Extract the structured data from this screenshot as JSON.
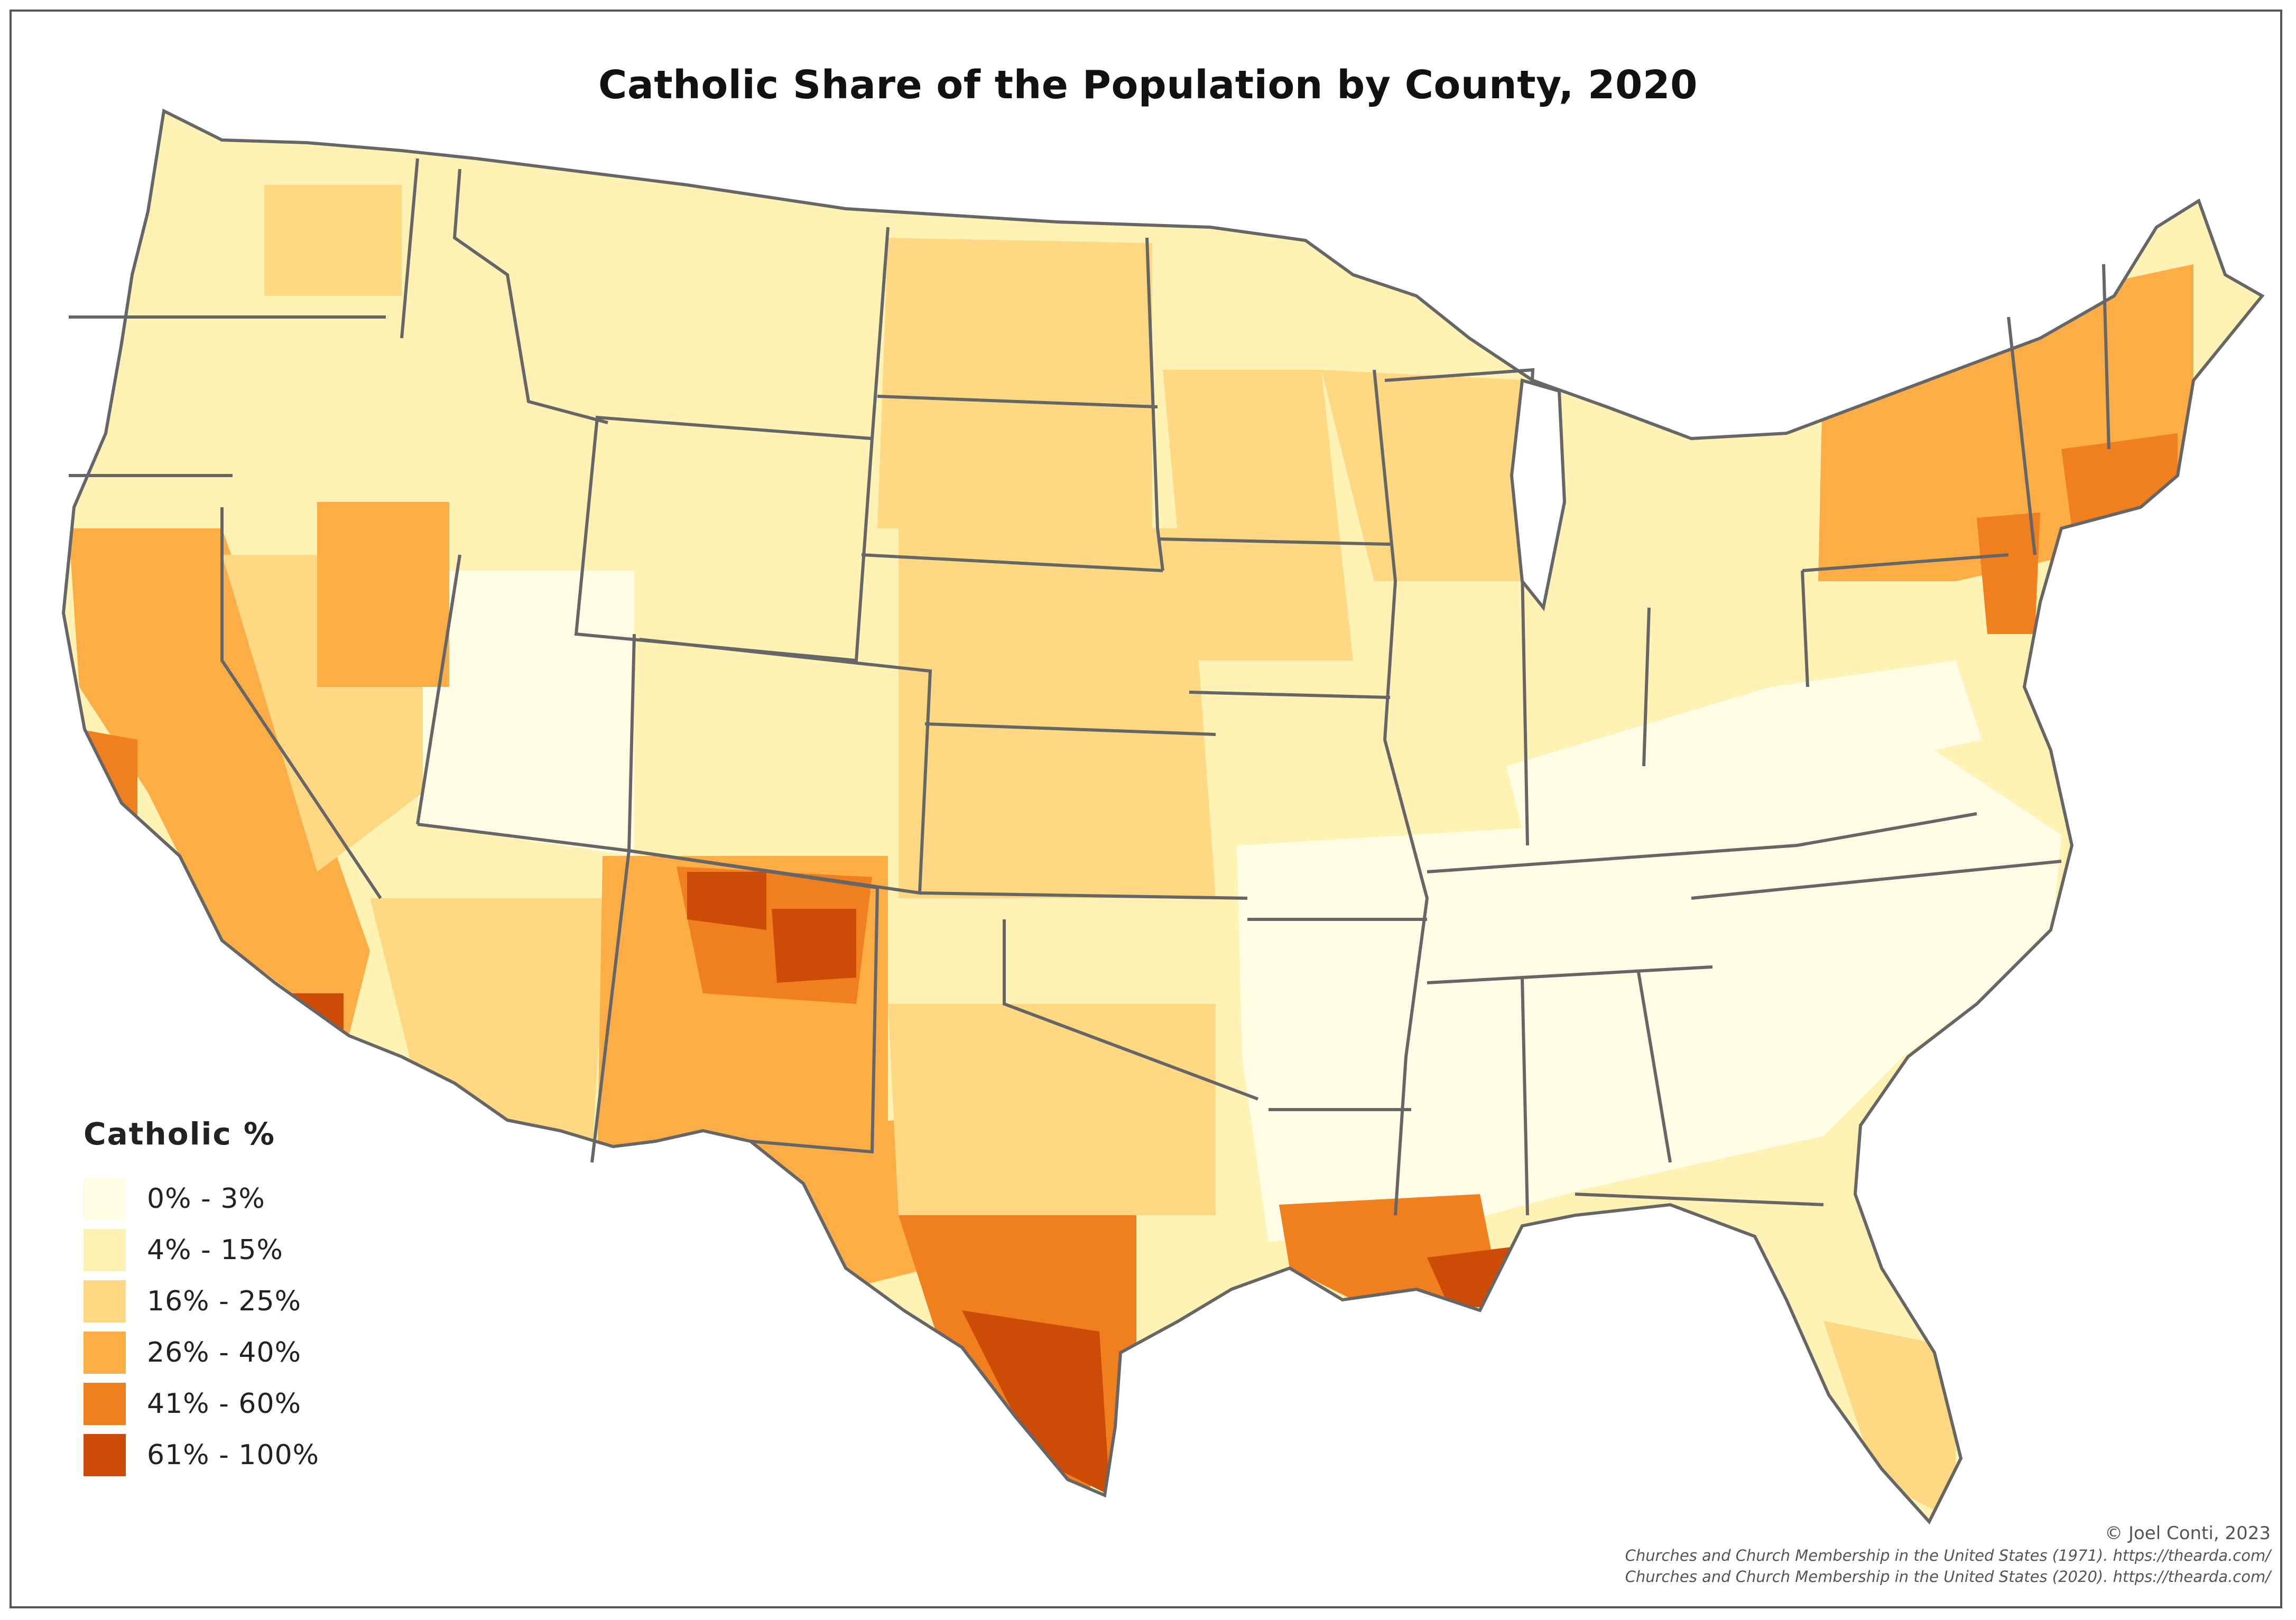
{
  "title": "Catholic Share of the Population by County, 2020",
  "legend": {
    "title": "Catholic %",
    "items": [
      {
        "label": "0% - 3%",
        "color": "#fffde6"
      },
      {
        "label": "4% - 15%",
        "color": "#fff2b5"
      },
      {
        "label": "16% - 25%",
        "color": "#fed882"
      },
      {
        "label": "26% - 40%",
        "color": "#fcad45"
      },
      {
        "label": "41% - 60%",
        "color": "#f07f1f"
      },
      {
        "label": "61% - 100%",
        "color": "#cc4c07"
      }
    ]
  },
  "colors": {
    "state_border": "#666666",
    "frame": "#555555",
    "background": "#ffffff"
  },
  "credits": {
    "author": "© Joel Conti, 2023",
    "source_1971": "Churches and Church Membership in the United States (1971). https://thearda.com/",
    "source_2020": "Churches and Church Membership in the United States (2020). https://thearda.com/"
  }
}
